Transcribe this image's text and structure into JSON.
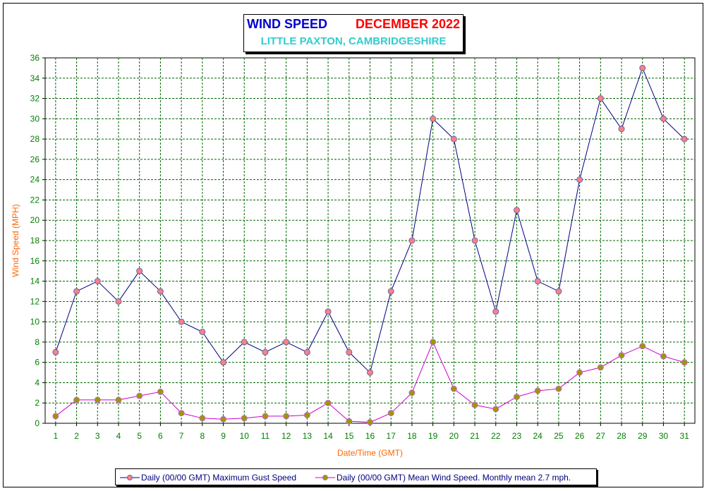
{
  "title": {
    "main": "WIND SPEED",
    "month": "DECEMBER 2022",
    "location": "LITTLE PAXTON, CAMBRIDGESHIRE"
  },
  "colors": {
    "title_main": "#0000cc",
    "title_month": "#ff0000",
    "location": "#33cccc",
    "axis_label": "#ff6600",
    "tick_label": "#008000",
    "grid": "#006600",
    "gust_line": "#000080",
    "gust_marker": "#ff8080",
    "mean_line": "#cc00cc",
    "mean_marker": "#999900"
  },
  "chart_data": {
    "type": "line",
    "xlabel": "Date/Time (GMT)",
    "ylabel": "Wind Speed (MPH)",
    "ylim": [
      0,
      36
    ],
    "y_step": 2,
    "grid": true,
    "legend_position": "bottom",
    "categories": [
      "1",
      "2",
      "3",
      "4",
      "5",
      "6",
      "7",
      "8",
      "9",
      "10",
      "11",
      "12",
      "13",
      "14",
      "15",
      "16",
      "17",
      "18",
      "19",
      "20",
      "21",
      "22",
      "23",
      "24",
      "25",
      "26",
      "27",
      "28",
      "29",
      "30",
      "31"
    ],
    "series": [
      {
        "name": "Daily (00/00 GMT) Maximum Gust Speed",
        "values": [
          7,
          13,
          14,
          12,
          15,
          13,
          10,
          9,
          6,
          8,
          7,
          8,
          7,
          11,
          7,
          5,
          13,
          18,
          30,
          28,
          18,
          11,
          21,
          14,
          13,
          24,
          32,
          29,
          35,
          30,
          28
        ]
      },
      {
        "name": "Daily (00/00 GMT) Mean Wind Speed. Monthly mean 2.7 mph.",
        "values": [
          0.7,
          2.3,
          2.3,
          2.3,
          2.7,
          3.1,
          1.0,
          0.5,
          0.4,
          0.5,
          0.7,
          0.7,
          0.8,
          2.0,
          0.2,
          0.1,
          1.0,
          3.0,
          8.0,
          3.4,
          1.8,
          1.4,
          2.6,
          3.2,
          3.4,
          5.0,
          5.5,
          6.7,
          7.6,
          6.6,
          6.0
        ]
      }
    ]
  }
}
